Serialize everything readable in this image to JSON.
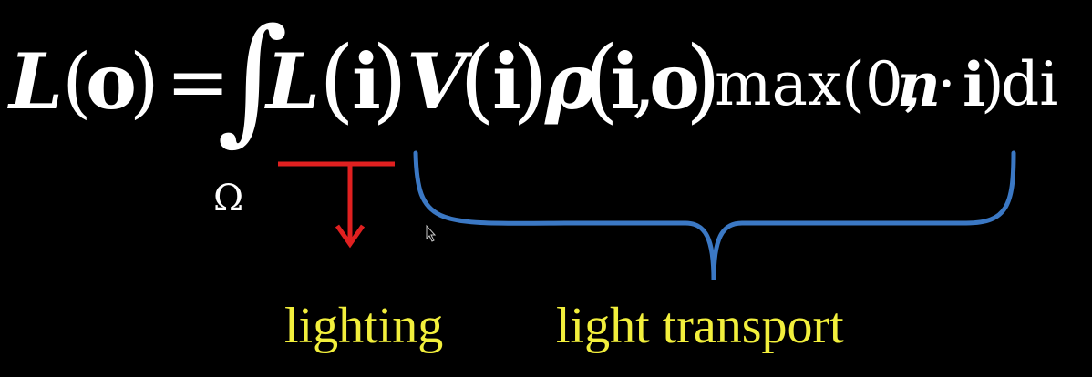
{
  "equation": {
    "lhs_func": "L",
    "lhs_open": "(",
    "lhs_arg": "o",
    "lhs_close": ")",
    "equals": "=",
    "integral": "∫",
    "domain": "Ω",
    "term1_func": "L",
    "term1_open": "(",
    "term1_arg": "i",
    "term1_close": ")",
    "term2_func": "V",
    "term2_open": "(",
    "term2_arg": "i",
    "term2_close": ")",
    "term3_func": "ρ",
    "term3_open": "(",
    "term3_arg1": "i",
    "term3_comma": ",",
    "term3_arg2": "o",
    "term3_close": ")",
    "max_text": "max(0,",
    "n_symbol": "n",
    "dot": "·",
    "i_symbol": "i",
    "max_close": ")",
    "differential": "di"
  },
  "annotations": {
    "lighting_label": "lighting",
    "transport_label": "light transport"
  },
  "colors": {
    "background": "#000000",
    "equation_text": "#ffffff",
    "lighting_marker": "#e02020",
    "transport_brace": "#3b78c4",
    "label_text": "#f2ef3c"
  },
  "icons": {
    "cursor": "mouse-pointer-icon"
  }
}
